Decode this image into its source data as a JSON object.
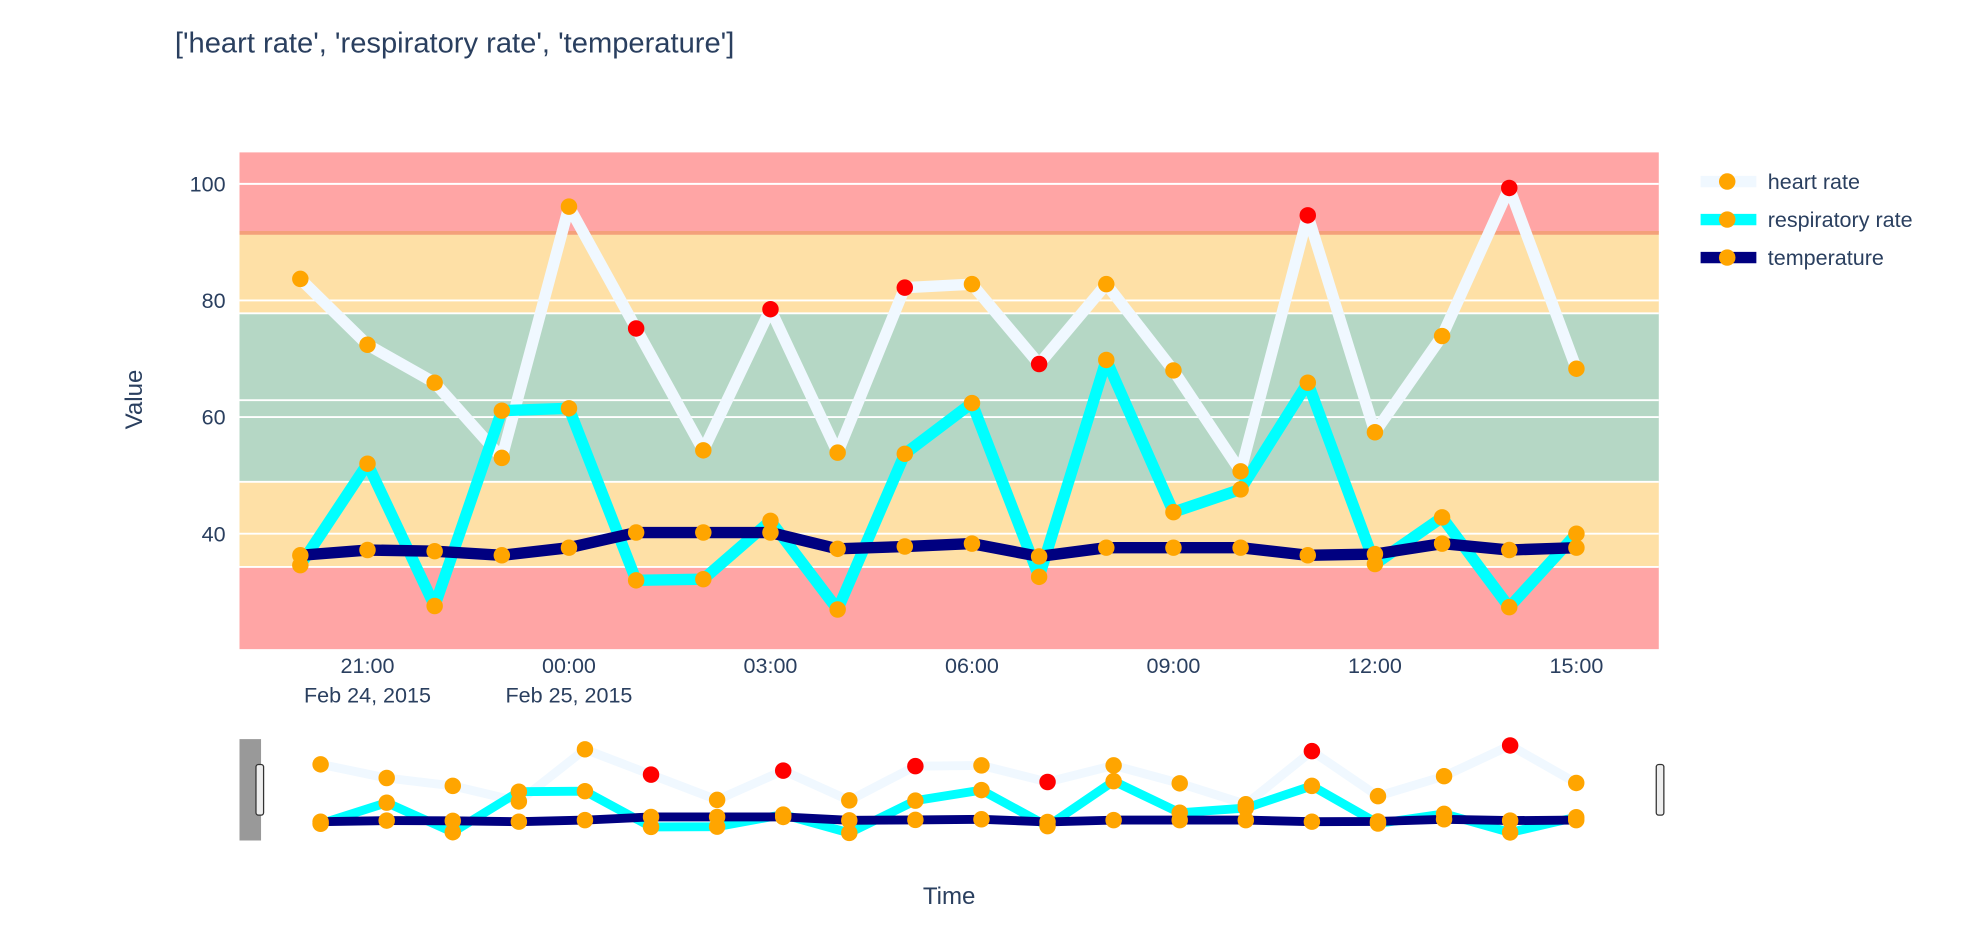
{
  "chart_data": {
    "type": "line",
    "title": "['heart rate', 'respiratory rate', 'temperature']",
    "xlabel": "Time",
    "ylabel": "Value",
    "x": [
      "2015-02-24 20:00",
      "2015-02-24 21:00",
      "2015-02-24 22:00",
      "2015-02-24 23:00",
      "2015-02-25 00:00",
      "2015-02-25 01:00",
      "2015-02-25 02:00",
      "2015-02-25 03:00",
      "2015-02-25 04:00",
      "2015-02-25 05:00",
      "2015-02-25 06:00",
      "2015-02-25 07:00",
      "2015-02-25 08:00",
      "2015-02-25 09:00",
      "2015-02-25 10:00",
      "2015-02-25 11:00",
      "2015-02-25 12:00",
      "2015-02-25 13:00",
      "2015-02-25 14:00",
      "2015-02-25 15:00"
    ],
    "xlim": [
      "2015-02-24 19:06",
      "2015-02-25 16:13"
    ],
    "ylim": [
      20.2,
      105.4
    ],
    "x_ticks": [
      {
        "hour": 1,
        "label": "21:00",
        "sublabel": "Feb 24, 2015"
      },
      {
        "hour": 4,
        "label": "00:00",
        "sublabel": "Feb 25, 2015"
      },
      {
        "hour": 7,
        "label": "03:00",
        "sublabel": ""
      },
      {
        "hour": 10,
        "label": "06:00",
        "sublabel": ""
      },
      {
        "hour": 13,
        "label": "09:00",
        "sublabel": ""
      },
      {
        "hour": 16,
        "label": "12:00",
        "sublabel": ""
      },
      {
        "hour": 19,
        "label": "15:00",
        "sublabel": ""
      }
    ],
    "y_ticks": [
      40,
      60,
      80,
      100
    ],
    "grid": true,
    "legend_position": "top-right",
    "bands": [
      {
        "from": 91.6,
        "to": 105.4,
        "color": "#ffa5a5"
      },
      {
        "from": 77.8,
        "to": 91.6,
        "color": "#fee0a6"
      },
      {
        "from": 48.9,
        "to": 77.8,
        "color": "#b5d7c5"
      },
      {
        "from": 34.3,
        "to": 48.9,
        "color": "#fee0a6"
      },
      {
        "from": 20.2,
        "to": 34.3,
        "color": "#ffa5a5"
      }
    ],
    "marker_colors": {
      "normal": "#FFA500",
      "alert": "#FF0000"
    },
    "series": [
      {
        "name": "heart rate",
        "color": "#F0F8FF",
        "values": [
          83.7,
          72.4,
          65.9,
          53.0,
          96.1,
          75.2,
          54.3,
          78.5,
          53.9,
          82.2,
          82.8,
          69.1,
          82.8,
          68.0,
          50.7,
          94.6,
          57.4,
          73.9,
          99.3,
          68.3
        ],
        "alerts": [
          false,
          false,
          false,
          false,
          false,
          true,
          false,
          true,
          false,
          true,
          false,
          true,
          false,
          false,
          false,
          true,
          false,
          false,
          true,
          false
        ]
      },
      {
        "name": "respiratory rate",
        "color": "#00FFFF",
        "values": [
          34.6,
          52.0,
          27.6,
          61.1,
          61.5,
          32.0,
          32.2,
          42.2,
          27.0,
          53.7,
          62.4,
          32.6,
          69.8,
          43.7,
          47.6,
          65.9,
          34.8,
          42.8,
          27.4,
          40.0
        ],
        "alerts": [
          false,
          false,
          false,
          false,
          false,
          false,
          false,
          false,
          false,
          false,
          false,
          false,
          false,
          false,
          false,
          false,
          false,
          false,
          false,
          false
        ]
      },
      {
        "name": "temperature",
        "color": "#000080",
        "values": [
          36.3,
          37.2,
          37.0,
          36.3,
          37.6,
          40.2,
          40.2,
          40.2,
          37.4,
          37.8,
          38.3,
          36.1,
          37.6,
          37.6,
          37.6,
          36.3,
          36.5,
          38.3,
          37.2,
          37.6
        ],
        "alerts": [
          false,
          false,
          false,
          false,
          false,
          false,
          false,
          false,
          false,
          false,
          false,
          false,
          false,
          false,
          false,
          false,
          false,
          false,
          false,
          false
        ]
      }
    ],
    "range_slider": true
  }
}
